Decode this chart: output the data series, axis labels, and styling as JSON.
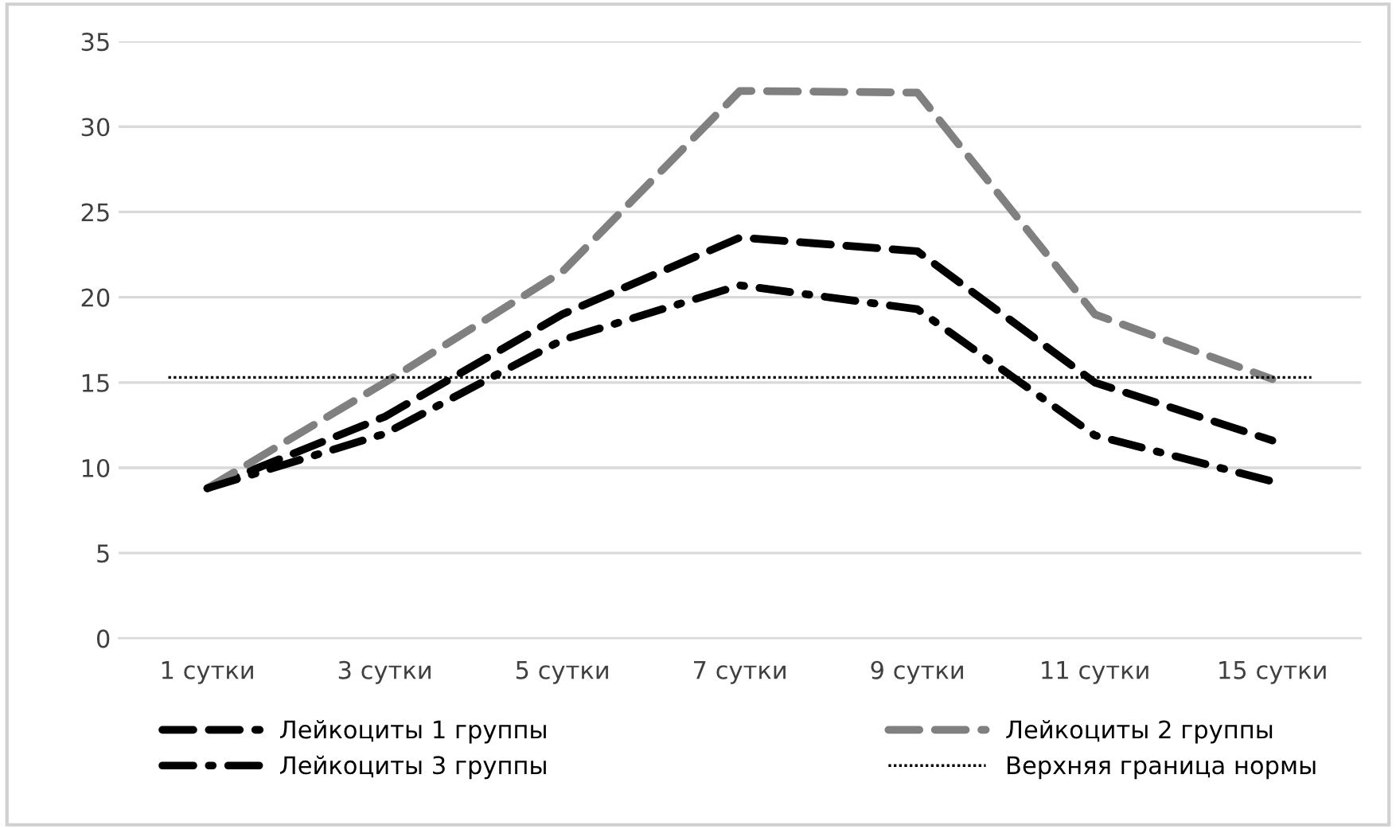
{
  "chart_data": {
    "type": "line",
    "categories": [
      "1 сутки",
      "3 сутки",
      "5 сутки",
      "7 сутки",
      "9 сутки",
      "11 сутки",
      "15 сутки"
    ],
    "series": [
      {
        "name": "Лейкоциты 1 группы",
        "color": "#000000",
        "line_style": "dashed",
        "values": [
          8.8,
          13,
          19,
          23.5,
          22.7,
          15,
          11.6
        ]
      },
      {
        "name": "Лейкоциты 2 группы",
        "color": "#808080",
        "line_style": "dashed",
        "values": [
          8.8,
          15,
          21.5,
          32.1,
          32,
          19,
          15.2
        ]
      },
      {
        "name": "Лейкоциты 3 группы",
        "color": "#000000",
        "line_style": "dashdot",
        "values": [
          8.8,
          12,
          17.5,
          20.7,
          19.3,
          11.9,
          9.2
        ]
      }
    ],
    "ref_lines": [
      {
        "axis": "y",
        "value": 15.3,
        "label": "Верхняя граница нормы",
        "color": "#000000",
        "line_style": "dotted"
      }
    ],
    "ylim": [
      0,
      35
    ],
    "yticks": [
      0,
      5,
      10,
      15,
      20,
      25,
      30,
      35
    ],
    "grid": "y",
    "legend": "bottom",
    "marker": "none"
  }
}
